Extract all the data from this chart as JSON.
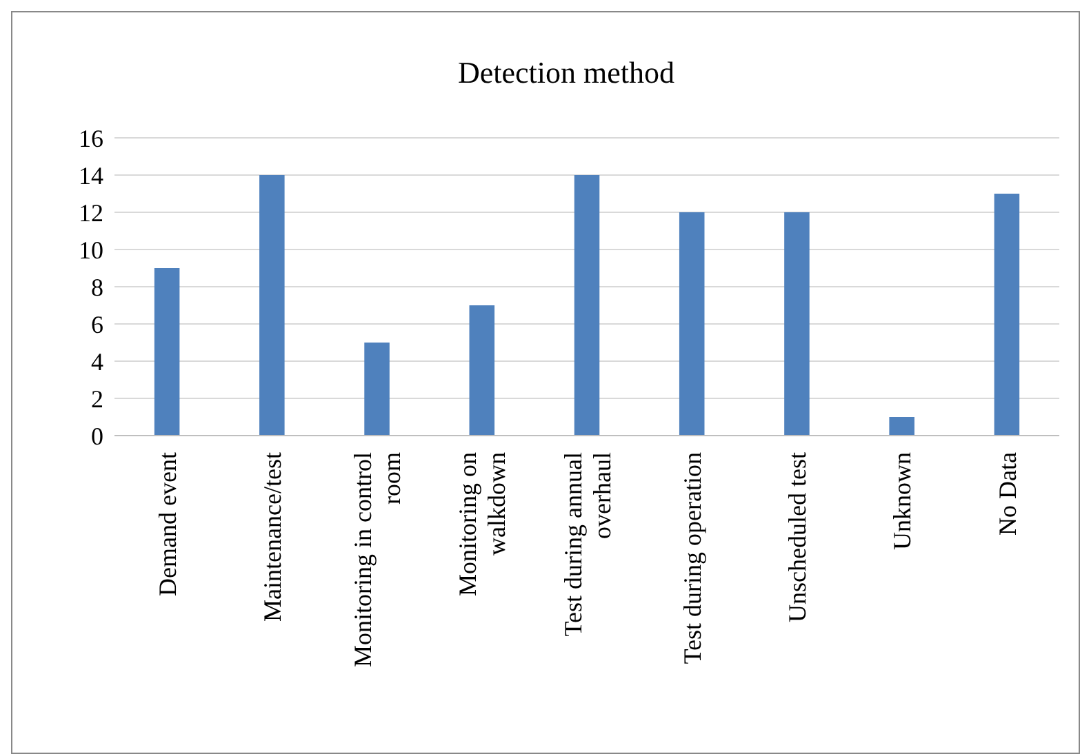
{
  "chart_data": {
    "type": "bar",
    "title": "Detection method",
    "categories": [
      "Demand event",
      "Maintenance/test",
      "Monitoring in control room",
      "Monitoring on walkdown",
      "Test during annual overhaul",
      "Test during operation",
      "Unscheduled test",
      "Unknown",
      "No Data"
    ],
    "values": [
      9,
      14,
      5,
      7,
      14,
      12,
      12,
      1,
      13
    ],
    "color": "#4f81bd",
    "ylim": [
      0,
      16
    ],
    "yticks": [
      0,
      2,
      4,
      6,
      8,
      10,
      12,
      14,
      16
    ],
    "grid": "y"
  }
}
